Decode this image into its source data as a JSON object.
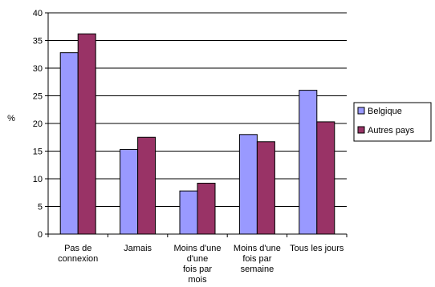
{
  "chart_data": {
    "type": "bar",
    "ylabel": "%",
    "ylim": [
      0,
      40
    ],
    "yticks": [
      0,
      5,
      10,
      15,
      20,
      25,
      30,
      35,
      40
    ],
    "grid": true,
    "legend_position": "right",
    "categories": [
      [
        "Pas de",
        "connexion"
      ],
      [
        "Jamais"
      ],
      [
        "Moins d'une",
        "d'une",
        "fois par",
        "mois"
      ],
      [
        "Moins d'une",
        "fois par",
        "semaine"
      ],
      [
        "Tous les  jours"
      ]
    ],
    "series": [
      {
        "name": "Belgique",
        "color": "#9999FF",
        "values": [
          32.8,
          15.3,
          7.8,
          18.0,
          26.0
        ]
      },
      {
        "name": "Autres pays",
        "color": "#993366",
        "values": [
          36.2,
          17.5,
          9.2,
          16.7,
          20.3
        ]
      }
    ]
  }
}
